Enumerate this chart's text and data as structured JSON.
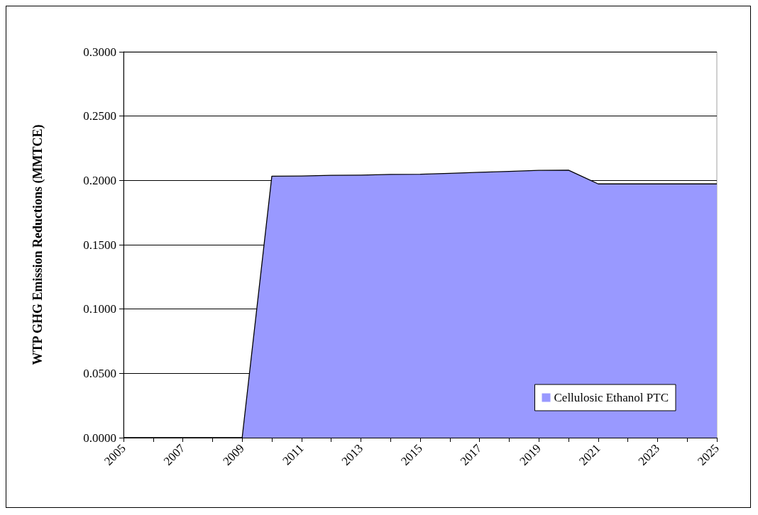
{
  "chart_data": {
    "type": "area",
    "categories": [
      "2005",
      null,
      "2007",
      null,
      "2009",
      null,
      "2011",
      null,
      "2013",
      null,
      "2015",
      null,
      "2017",
      null,
      "2019",
      null,
      "2021",
      null,
      "2023",
      null,
      "2025"
    ],
    "series": [
      {
        "name": "Cellulosic Ethanol PTC",
        "color": "#9999ff",
        "values": [
          0,
          0,
          0,
          0,
          0,
          0.2033,
          0.2034,
          0.204,
          0.2041,
          0.2047,
          0.2048,
          0.2055,
          0.2063,
          0.207,
          0.2078,
          0.208,
          0.1973,
          0.1973,
          0.1973,
          0.1973,
          0.1973
        ]
      }
    ],
    "ylabel": "WTP GHG Emission Reductions (MMTCE)",
    "ylim": [
      0,
      0.3
    ],
    "yticks": [
      {
        "value": 0,
        "label": "0.0000"
      },
      {
        "value": 0.05,
        "label": "0.0500"
      },
      {
        "value": 0.1,
        "label": "0.1000"
      },
      {
        "value": 0.15,
        "label": "0.1500"
      },
      {
        "value": 0.2,
        "label": "0.2000"
      },
      {
        "value": 0.25,
        "label": "0.2500"
      },
      {
        "value": 0.3,
        "label": "0.3000"
      }
    ],
    "grid": "y",
    "legend": "bottom right"
  }
}
